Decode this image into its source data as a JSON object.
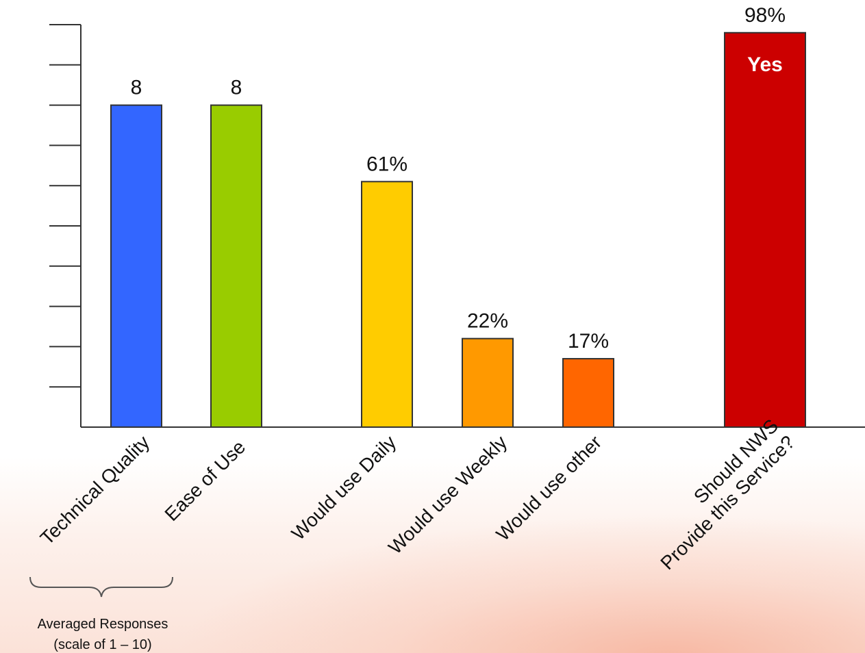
{
  "chart_data": {
    "type": "bar",
    "title": "",
    "xlabel": "",
    "ylabel": "",
    "grid": false,
    "categories": [
      "Technical Quality",
      "Ease of Use",
      "Would use Daily",
      "Would use Weekly",
      "Would use other",
      "Should NWS\nProvide this Service?"
    ],
    "bars": [
      {
        "category": "Technical Quality",
        "value": 8,
        "scale_max": 10,
        "label": "8",
        "color": "#3366ff"
      },
      {
        "category": "Ease of Use",
        "value": 8,
        "scale_max": 10,
        "label": "8",
        "color": "#99cc00"
      },
      {
        "category": "Would use Daily",
        "value": 61,
        "scale_max": 100,
        "label": "61%",
        "color": "#ffcc00"
      },
      {
        "category": "Would use Weekly",
        "value": 22,
        "scale_max": 100,
        "label": "22%",
        "color": "#ff9900"
      },
      {
        "category": "Would use other",
        "value": 17,
        "scale_max": 100,
        "label": "17%",
        "color": "#ff6600"
      },
      {
        "category": "Should NWS\nProvide this Service?",
        "value": 98,
        "scale_max": 100,
        "label": "98%",
        "inner_label": "Yes",
        "color": "#cc0000"
      }
    ],
    "y_ticks_count": 10,
    "annotation": {
      "line1": "Averaged Responses",
      "line2": "(scale of 1 – 10)",
      "applies_to": [
        "Technical Quality",
        "Ease of Use"
      ]
    }
  }
}
